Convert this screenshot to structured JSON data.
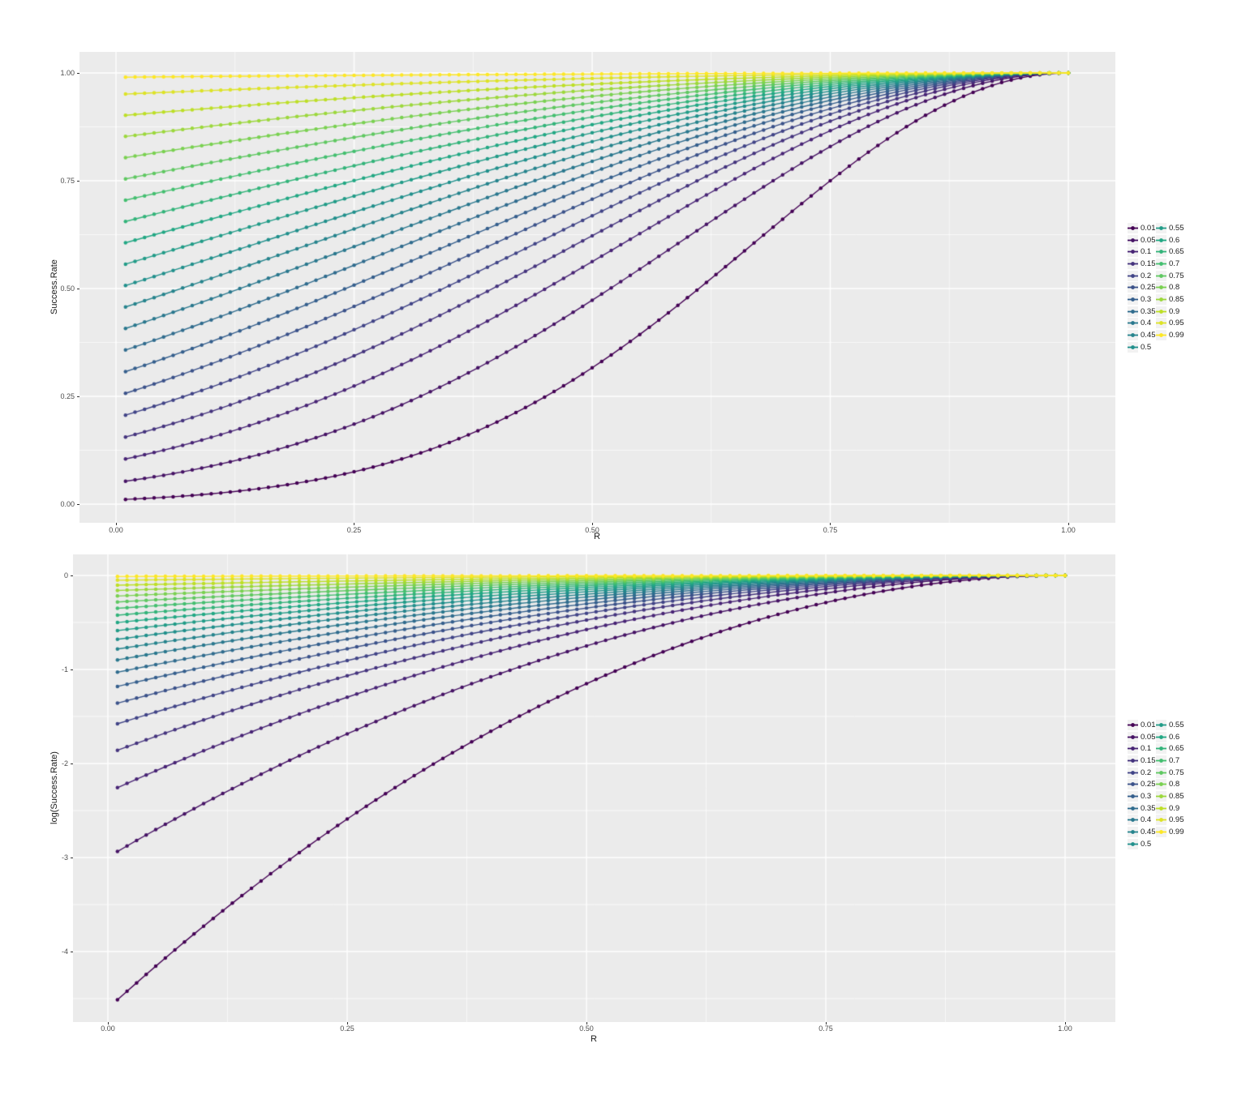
{
  "page": {
    "background": "#FFFFFF"
  },
  "style": {
    "panel_bg": "#EBEBEB",
    "grid_color": "#FFFFFF",
    "tick_text_color": "#4D4D4D",
    "axis_title_color": "#1A1A1A",
    "tick_mark_color": "#333333",
    "legend_key_bg": "#F2F2F2"
  },
  "palette": {
    "name": "viridis",
    "anchors": [
      "#440154",
      "#482475",
      "#414487",
      "#355F8D",
      "#2A788E",
      "#21908C",
      "#22A884",
      "#44BF70",
      "#7AD151",
      "#BDDF26",
      "#FDE725"
    ]
  },
  "legend": {
    "title": "",
    "columns": 2,
    "column_split": 11,
    "items": [
      "0.01",
      "0.05",
      "0.1",
      "0.15",
      "0.2",
      "0.25",
      "0.3",
      "0.35",
      "0.4",
      "0.45",
      "0.5",
      "0.55",
      "0.6",
      "0.65",
      "0.7",
      "0.75",
      "0.8",
      "0.85",
      "0.9",
      "0.95",
      "0.99"
    ]
  },
  "chart_data": [
    {
      "type": "line",
      "title": "",
      "xlabel": "R",
      "ylabel": "Success.Rate",
      "x": {
        "start": 0.01,
        "end": 1.0,
        "step": 0.01,
        "points_per_series": 100
      },
      "xlim": [
        -0.04,
        1.05
      ],
      "ylim": [
        -0.04,
        1.05
      ],
      "x_tick_labels": [
        "0.00",
        "0.25",
        "0.50",
        "0.75",
        "1.00"
      ],
      "y_tick_labels": [
        "1.00",
        "0.75",
        "0.50",
        "0.25",
        "0.00"
      ],
      "grid": "major+minor",
      "legend_position": "right",
      "value_fn": "pow",
      "formula": "Success.Rate = p^((1-R)^2)",
      "series": [
        {
          "name": "0.01",
          "p": 0.01
        },
        {
          "name": "0.05",
          "p": 0.05
        },
        {
          "name": "0.1",
          "p": 0.1
        },
        {
          "name": "0.15",
          "p": 0.15
        },
        {
          "name": "0.2",
          "p": 0.2
        },
        {
          "name": "0.25",
          "p": 0.25
        },
        {
          "name": "0.3",
          "p": 0.3
        },
        {
          "name": "0.35",
          "p": 0.35
        },
        {
          "name": "0.4",
          "p": 0.4
        },
        {
          "name": "0.45",
          "p": 0.45
        },
        {
          "name": "0.5",
          "p": 0.5
        },
        {
          "name": "0.55",
          "p": 0.55
        },
        {
          "name": "0.6",
          "p": 0.6
        },
        {
          "name": "0.65",
          "p": 0.65
        },
        {
          "name": "0.7",
          "p": 0.7
        },
        {
          "name": "0.75",
          "p": 0.75
        },
        {
          "name": "0.8",
          "p": 0.8
        },
        {
          "name": "0.85",
          "p": 0.85
        },
        {
          "name": "0.9",
          "p": 0.9
        },
        {
          "name": "0.95",
          "p": 0.95
        },
        {
          "name": "0.99",
          "p": 0.99
        }
      ]
    },
    {
      "type": "line",
      "title": "",
      "xlabel": "R",
      "ylabel": "log(Success.Rate)",
      "x": {
        "start": 0.01,
        "end": 1.0,
        "step": 0.01,
        "points_per_series": 100
      },
      "xlim": [
        -0.04,
        1.05
      ],
      "ylim": [
        -4.75,
        0.22
      ],
      "x_tick_labels": [
        "0.00",
        "0.25",
        "0.50",
        "0.75",
        "1.00"
      ],
      "y_tick_labels": [
        "0",
        "-1",
        "-2",
        "-3",
        "-4"
      ],
      "grid": "major+minor",
      "legend_position": "right",
      "value_fn": "log",
      "formula": "log(Success.Rate) = ln(p) * (1-R)^2",
      "series": [
        {
          "name": "0.01",
          "p": 0.01
        },
        {
          "name": "0.05",
          "p": 0.05
        },
        {
          "name": "0.1",
          "p": 0.1
        },
        {
          "name": "0.15",
          "p": 0.15
        },
        {
          "name": "0.2",
          "p": 0.2
        },
        {
          "name": "0.25",
          "p": 0.25
        },
        {
          "name": "0.3",
          "p": 0.3
        },
        {
          "name": "0.35",
          "p": 0.35
        },
        {
          "name": "0.4",
          "p": 0.4
        },
        {
          "name": "0.45",
          "p": 0.45
        },
        {
          "name": "0.5",
          "p": 0.5
        },
        {
          "name": "0.55",
          "p": 0.55
        },
        {
          "name": "0.6",
          "p": 0.6
        },
        {
          "name": "0.65",
          "p": 0.65
        },
        {
          "name": "0.7",
          "p": 0.7
        },
        {
          "name": "0.75",
          "p": 0.75
        },
        {
          "name": "0.8",
          "p": 0.8
        },
        {
          "name": "0.85",
          "p": 0.85
        },
        {
          "name": "0.9",
          "p": 0.9
        },
        {
          "name": "0.95",
          "p": 0.95
        },
        {
          "name": "0.99",
          "p": 0.99
        }
      ]
    }
  ]
}
